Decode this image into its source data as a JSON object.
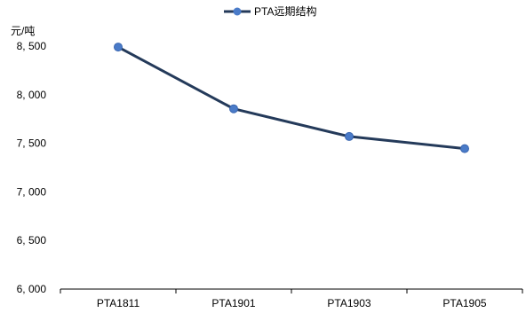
{
  "chart_data": {
    "type": "line",
    "title": "",
    "ylabel": "元/吨",
    "xlabel": "",
    "categories": [
      "PTA1811",
      "PTA1901",
      "PTA1903",
      "PTA1905"
    ],
    "series": [
      {
        "name": "PTA远期结构",
        "values": [
          8490,
          7855,
          7570,
          7445
        ]
      }
    ],
    "ylim": [
      6000,
      8500
    ],
    "yticks": [
      6000,
      6500,
      7000,
      7500,
      8000,
      8500
    ],
    "ytick_labels": [
      "6, 000",
      "6, 500",
      "7, 000",
      "7, 500",
      "8, 000",
      "8, 500"
    ],
    "grid": false,
    "legend": "top-center",
    "colors": {
      "line": "#243a5a",
      "marker": "#4a7bc8",
      "axis": "#000000"
    }
  }
}
